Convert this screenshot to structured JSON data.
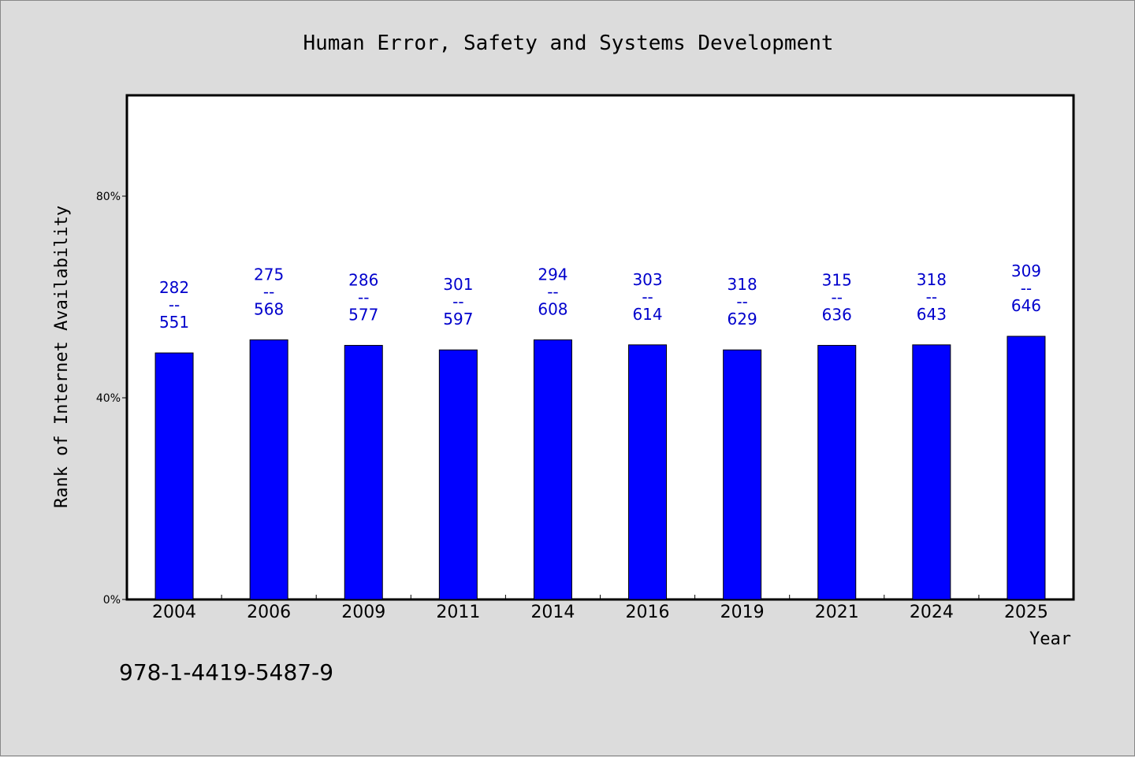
{
  "chart_data": {
    "type": "bar",
    "title": "Human Error, Safety and Systems Development",
    "xlabel": "Year",
    "ylabel": "Rank of Internet Availability",
    "categories": [
      "2004",
      "2006",
      "2009",
      "2011",
      "2014",
      "2016",
      "2019",
      "2021",
      "2024",
      "2025"
    ],
    "values": [
      48.9,
      51.5,
      50.4,
      49.5,
      51.5,
      50.5,
      49.5,
      50.4,
      50.5,
      52.2
    ],
    "top_labels": [
      "282",
      "275",
      "286",
      "301",
      "294",
      "303",
      "318",
      "315",
      "318",
      "309"
    ],
    "separator_label": "--",
    "bottom_labels": [
      "551",
      "568",
      "577",
      "597",
      "608",
      "614",
      "629",
      "636",
      "643",
      "646"
    ],
    "ylim": [
      0,
      100
    ],
    "yticks": [
      0,
      40,
      80
    ],
    "ytick_labels": [
      "0%",
      "40%",
      "80%"
    ],
    "bar_color": "#0000ff",
    "label_color": "#0000cc",
    "grid": false
  },
  "footer": {
    "isbn": "978-1-4419-5487-9"
  }
}
